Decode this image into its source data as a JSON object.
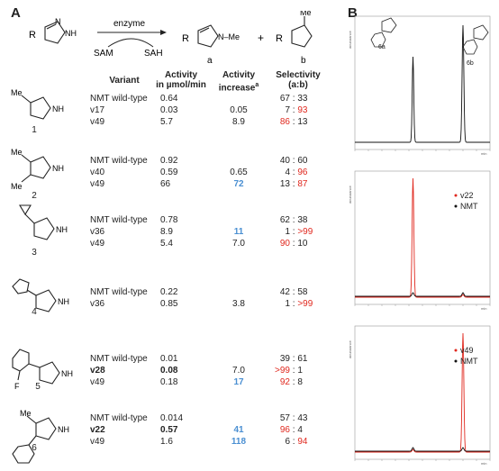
{
  "panel_a_label": "A",
  "panel_b_label": "B",
  "scheme": {
    "enzyme": "enzyme",
    "sam": "SAM",
    "sah": "SAH",
    "r_left": "R",
    "r_prod_a": "R",
    "r_prod_b": "R",
    "nh": "NH",
    "n": "N",
    "nme": "N–Me",
    "me": "Me",
    "plus": "+",
    "label_a": "a",
    "label_b": "b"
  },
  "table": {
    "headers": {
      "variant": "Variant",
      "activity": [
        "Activity",
        "in µmol/min"
      ],
      "increase": [
        "Activity",
        "increase"
      ],
      "increase_sup": "a",
      "selectivity": [
        "Selectivity",
        "(a:b)"
      ]
    },
    "compounds": [
      {
        "number": "1",
        "rows": [
          {
            "variant": "NMT wild-type",
            "activity": "0.64",
            "increase": "",
            "sel_a": "67",
            "sel_b": "33"
          },
          {
            "variant": "v17",
            "activity": "0.03",
            "increase": "0.05",
            "sel_a": "7",
            "sel_b": "93"
          },
          {
            "variant": "v49",
            "activity": "5.7",
            "increase": "8.9",
            "sel_a": "86",
            "sel_b": "13"
          }
        ]
      },
      {
        "number": "2",
        "rows": [
          {
            "variant": "NMT wild-type",
            "activity": "0.92",
            "increase": "",
            "sel_a": "40",
            "sel_b": "60"
          },
          {
            "variant": "v40",
            "activity": "0.59",
            "increase": "0.65",
            "sel_a": "4",
            "sel_b": "96"
          },
          {
            "variant": "v49",
            "activity": "66",
            "increase": "72",
            "sel_a": "13",
            "sel_b": "87"
          }
        ]
      },
      {
        "number": "3",
        "rows": [
          {
            "variant": "NMT wild-type",
            "activity": "0.78",
            "increase": "",
            "sel_a": "62",
            "sel_b": "38"
          },
          {
            "variant": "v36",
            "activity": "8.9",
            "increase": "11",
            "sel_a": "1",
            "sel_b": ">99"
          },
          {
            "variant": "v49",
            "activity": "5.4",
            "increase": "7.0",
            "sel_a": "90",
            "sel_b": "10"
          }
        ]
      },
      {
        "number": "4",
        "rows": [
          {
            "variant": "NMT wild-type",
            "activity": "0.22",
            "increase": "",
            "sel_a": "42",
            "sel_b": "58"
          },
          {
            "variant": "v36",
            "activity": "0.85",
            "increase": "3.8",
            "sel_a": "1",
            "sel_b": ">99"
          }
        ]
      },
      {
        "number": "5",
        "substituent": "F",
        "rows": [
          {
            "variant": "NMT wild-type",
            "activity": "0.01",
            "increase": "",
            "sel_a": "39",
            "sel_b": "61"
          },
          {
            "variant": "v28",
            "activity": "0.08",
            "increase": "7.0",
            "sel_a": ">99",
            "sel_b": "1"
          },
          {
            "variant": "v49",
            "activity": "0.18",
            "increase": "17",
            "sel_a": "92",
            "sel_b": "8"
          }
        ]
      },
      {
        "number": "6",
        "rows": [
          {
            "variant": "NMT wild-type",
            "activity": "0.014",
            "increase": "",
            "sel_a": "57",
            "sel_b": "43"
          },
          {
            "variant": "v22",
            "activity": "0.57",
            "increase": "41",
            "sel_a": "96",
            "sel_b": "4"
          },
          {
            "variant": "v49",
            "activity": "1.6",
            "increase": "118",
            "sel_a": "6",
            "sel_b": "94"
          }
        ]
      }
    ]
  },
  "colors": {
    "red": "#e0281e",
    "blue": "#4a8fd2",
    "black": "#111111"
  },
  "chromatograms": {
    "ylabel": "abundance",
    "xunit": "min",
    "top": {
      "label_a": "6a",
      "label_b": "6b",
      "peak_a_time": 0.43,
      "peak_b_time": 0.8
    },
    "middle": {
      "legend": [
        {
          "name": "v22",
          "color": "#e0281e"
        },
        {
          "name": "NMT",
          "color": "#111111"
        }
      ],
      "peak_time": 0.43
    },
    "bottom": {
      "legend": [
        {
          "name": "v49",
          "color": "#e0281e"
        },
        {
          "name": "NMT",
          "color": "#111111"
        }
      ],
      "peak_time": 0.8
    }
  }
}
